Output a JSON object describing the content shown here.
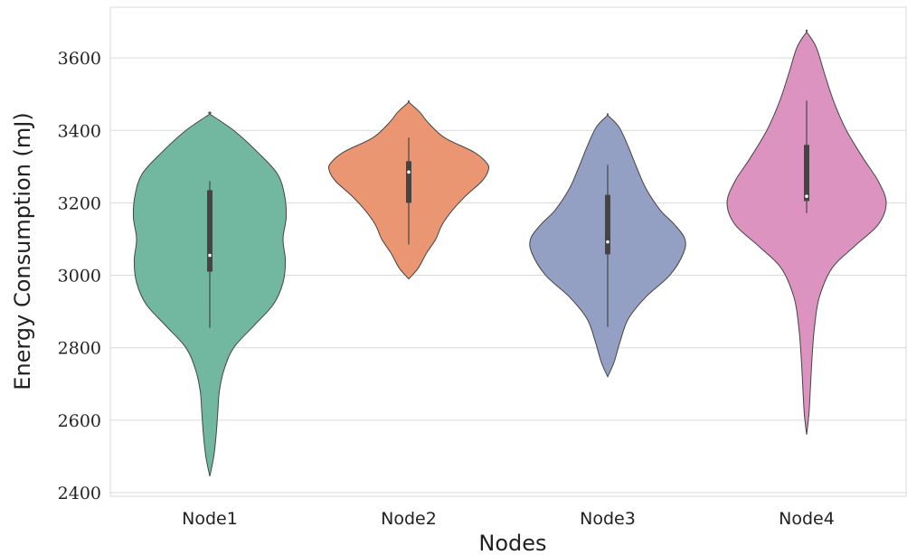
{
  "chart_data": {
    "type": "violin",
    "xlabel": "Nodes",
    "ylabel": "Energy Consumption (mJ)",
    "ylim": [
      2390,
      3740
    ],
    "yticks": [
      2400,
      2600,
      2800,
      3000,
      3200,
      3400,
      3600
    ],
    "grid": "horizontal",
    "categories": [
      "Node1",
      "Node2",
      "Node3",
      "Node4"
    ],
    "colors": [
      "#72b8a0",
      "#ea9673",
      "#93a0c4",
      "#dd93bf"
    ],
    "violins": [
      {
        "category": "Node1",
        "min_extent": 2445,
        "max_extent": 3445,
        "whisker_low": 2855,
        "whisker_high": 3260,
        "q1": 3010,
        "median": 3055,
        "q3": 3235,
        "density": [
          [
            2445,
            0.0
          ],
          [
            2500,
            0.05
          ],
          [
            2560,
            0.08
          ],
          [
            2620,
            0.1
          ],
          [
            2680,
            0.12
          ],
          [
            2740,
            0.18
          ],
          [
            2800,
            0.3
          ],
          [
            2860,
            0.55
          ],
          [
            2920,
            0.8
          ],
          [
            2980,
            0.92
          ],
          [
            3040,
            0.95
          ],
          [
            3100,
            0.92
          ],
          [
            3160,
            0.96
          ],
          [
            3220,
            0.94
          ],
          [
            3280,
            0.85
          ],
          [
            3340,
            0.6
          ],
          [
            3400,
            0.3
          ],
          [
            3445,
            0.0
          ]
        ]
      },
      {
        "category": "Node2",
        "min_extent": 2990,
        "max_extent": 3478,
        "whisker_low": 3085,
        "whisker_high": 3380,
        "q1": 3200,
        "median": 3285,
        "q3": 3315,
        "density": [
          [
            2990,
            0.0
          ],
          [
            3020,
            0.12
          ],
          [
            3060,
            0.22
          ],
          [
            3100,
            0.34
          ],
          [
            3140,
            0.42
          ],
          [
            3180,
            0.55
          ],
          [
            3220,
            0.72
          ],
          [
            3260,
            0.92
          ],
          [
            3290,
            1.0
          ],
          [
            3310,
            0.98
          ],
          [
            3340,
            0.82
          ],
          [
            3380,
            0.45
          ],
          [
            3420,
            0.25
          ],
          [
            3450,
            0.14
          ],
          [
            3478,
            0.0
          ]
        ]
      },
      {
        "category": "Node3",
        "min_extent": 2720,
        "max_extent": 3442,
        "whisker_low": 2858,
        "whisker_high": 3305,
        "q1": 3058,
        "median": 3092,
        "q3": 3222,
        "density": [
          [
            2720,
            0.0
          ],
          [
            2760,
            0.08
          ],
          [
            2820,
            0.16
          ],
          [
            2880,
            0.26
          ],
          [
            2940,
            0.48
          ],
          [
            3000,
            0.78
          ],
          [
            3060,
            0.95
          ],
          [
            3100,
            0.97
          ],
          [
            3140,
            0.84
          ],
          [
            3180,
            0.66
          ],
          [
            3240,
            0.48
          ],
          [
            3300,
            0.36
          ],
          [
            3360,
            0.25
          ],
          [
            3410,
            0.14
          ],
          [
            3442,
            0.0
          ]
        ]
      },
      {
        "category": "Node4",
        "min_extent": 2560,
        "max_extent": 3672,
        "whisker_low": 3172,
        "whisker_high": 3482,
        "q1": 3205,
        "median": 3218,
        "q3": 3360,
        "density": [
          [
            2560,
            0.0
          ],
          [
            2620,
            0.03
          ],
          [
            2700,
            0.05
          ],
          [
            2780,
            0.07
          ],
          [
            2860,
            0.1
          ],
          [
            2940,
            0.16
          ],
          [
            3020,
            0.32
          ],
          [
            3080,
            0.6
          ],
          [
            3140,
            0.9
          ],
          [
            3200,
            1.0
          ],
          [
            3260,
            0.9
          ],
          [
            3320,
            0.72
          ],
          [
            3400,
            0.5
          ],
          [
            3480,
            0.34
          ],
          [
            3560,
            0.22
          ],
          [
            3630,
            0.12
          ],
          [
            3672,
            0.0
          ]
        ]
      }
    ]
  }
}
